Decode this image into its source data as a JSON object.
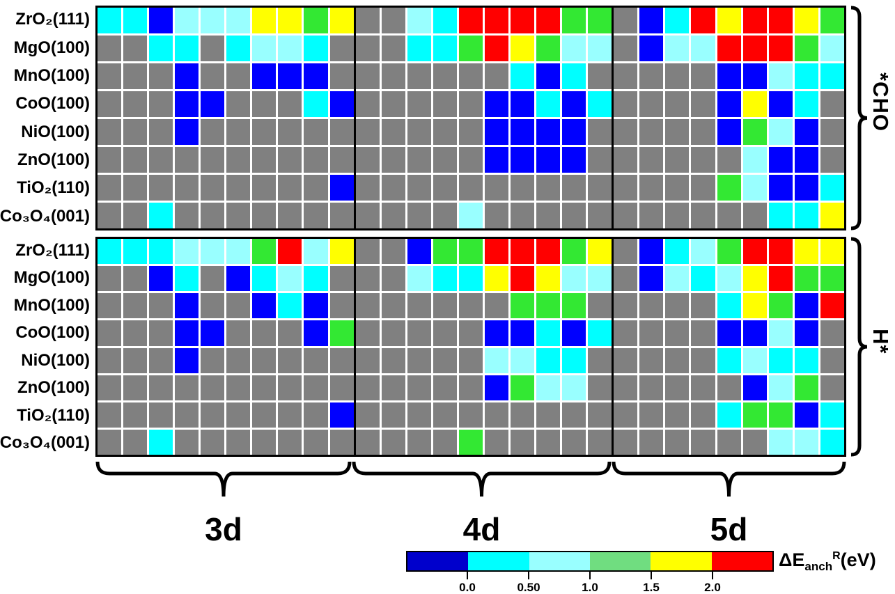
{
  "chart_data": {
    "type": "heatmap",
    "title": "",
    "surfaces": [
      "ZrO₂(111)",
      "MgO(100)",
      "MnO(100)",
      "CoO(100)",
      "NiO(100)",
      "ZnO(100)",
      "TiO₂(110)",
      "Co₃O₄(001)"
    ],
    "groups": [
      {
        "label": "3d",
        "cols": 10
      },
      {
        "label": "4d",
        "cols": 10
      },
      {
        "label": "5d",
        "cols": 9
      }
    ],
    "cell_colors": {
      "na": "#808080",
      "b": "#0000FF",
      "c": "#00FFFF",
      "lc": "#99FFFF",
      "g": "#33E833",
      "y": "#FFFF00",
      "r": "#FF0000"
    },
    "legend_bins": {
      "b": "< 0.0 eV",
      "c": "0.0 - 0.50 eV",
      "lc": "0.50 - 1.0 eV",
      "g": "1.0 - 1.5 eV",
      "y": "1.5 - 2.0 eV",
      "r": "> 2.0 eV",
      "na": "no data (gray)"
    },
    "panels": [
      {
        "label": "*CHO",
        "cells": {
          "3d": [
            [
              "c",
              "c",
              "b",
              "lc",
              "lc",
              "lc",
              "y",
              "y",
              "g",
              "y"
            ],
            [
              "na",
              "na",
              "c",
              "c",
              "na",
              "c",
              "lc",
              "lc",
              "c",
              "na"
            ],
            [
              "na",
              "na",
              "na",
              "b",
              "na",
              "na",
              "b",
              "b",
              "b",
              "na"
            ],
            [
              "na",
              "na",
              "na",
              "b",
              "b",
              "na",
              "na",
              "na",
              "c",
              "b"
            ],
            [
              "na",
              "na",
              "na",
              "b",
              "na",
              "na",
              "na",
              "na",
              "na",
              "na"
            ],
            [
              "na",
              "na",
              "na",
              "na",
              "na",
              "na",
              "na",
              "na",
              "na",
              "na"
            ],
            [
              "na",
              "na",
              "na",
              "na",
              "na",
              "na",
              "na",
              "na",
              "na",
              "b"
            ],
            [
              "na",
              "na",
              "c",
              "na",
              "na",
              "na",
              "na",
              "na",
              "na",
              "na"
            ]
          ],
          "4d": [
            [
              "na",
              "na",
              "lc",
              "c",
              "r",
              "r",
              "r",
              "r",
              "g",
              "g"
            ],
            [
              "na",
              "na",
              "c",
              "c",
              "g",
              "r",
              "y",
              "g",
              "lc",
              "lc"
            ],
            [
              "na",
              "na",
              "na",
              "na",
              "na",
              "na",
              "c",
              "b",
              "c",
              "na"
            ],
            [
              "na",
              "na",
              "na",
              "na",
              "na",
              "b",
              "b",
              "c",
              "b",
              "c"
            ],
            [
              "na",
              "na",
              "na",
              "na",
              "na",
              "b",
              "b",
              "b",
              "b",
              "na"
            ],
            [
              "na",
              "na",
              "na",
              "na",
              "na",
              "b",
              "b",
              "b",
              "b",
              "na"
            ],
            [
              "na",
              "na",
              "na",
              "na",
              "na",
              "na",
              "na",
              "na",
              "na",
              "na"
            ],
            [
              "na",
              "na",
              "na",
              "na",
              "lc",
              "na",
              "na",
              "na",
              "na",
              "na"
            ]
          ],
          "5d": [
            [
              "na",
              "b",
              "c",
              "r",
              "y",
              "r",
              "r",
              "y",
              "g"
            ],
            [
              "na",
              "b",
              "lc",
              "lc",
              "r",
              "r",
              "r",
              "g",
              "lc"
            ],
            [
              "na",
              "na",
              "na",
              "na",
              "b",
              "b",
              "lc",
              "c",
              "c"
            ],
            [
              "na",
              "na",
              "na",
              "na",
              "b",
              "y",
              "b",
              "c",
              "na"
            ],
            [
              "na",
              "na",
              "na",
              "na",
              "b",
              "g",
              "lc",
              "b",
              "na"
            ],
            [
              "na",
              "na",
              "na",
              "na",
              "na",
              "lc",
              "b",
              "b",
              "na"
            ],
            [
              "na",
              "na",
              "na",
              "na",
              "g",
              "lc",
              "b",
              "b",
              "c"
            ],
            [
              "na",
              "na",
              "na",
              "na",
              "na",
              "na",
              "c",
              "c",
              "y"
            ]
          ]
        }
      },
      {
        "label": "H*",
        "cells": {
          "3d": [
            [
              "c",
              "c",
              "c",
              "lc",
              "lc",
              "lc",
              "g",
              "r",
              "lc",
              "y"
            ],
            [
              "na",
              "na",
              "b",
              "c",
              "na",
              "b",
              "c",
              "lc",
              "c",
              "na"
            ],
            [
              "na",
              "na",
              "na",
              "b",
              "na",
              "na",
              "b",
              "c",
              "b",
              "na"
            ],
            [
              "na",
              "na",
              "na",
              "b",
              "b",
              "na",
              "na",
              "na",
              "b",
              "g"
            ],
            [
              "na",
              "na",
              "na",
              "b",
              "na",
              "na",
              "na",
              "na",
              "na",
              "na"
            ],
            [
              "na",
              "na",
              "na",
              "na",
              "na",
              "na",
              "na",
              "na",
              "na",
              "na"
            ],
            [
              "na",
              "na",
              "na",
              "na",
              "na",
              "na",
              "na",
              "na",
              "na",
              "b"
            ],
            [
              "na",
              "na",
              "c",
              "na",
              "na",
              "na",
              "na",
              "na",
              "na",
              "na"
            ]
          ],
          "4d": [
            [
              "na",
              "na",
              "b",
              "g",
              "g",
              "r",
              "r",
              "r",
              "g",
              "y"
            ],
            [
              "na",
              "na",
              "lc",
              "c",
              "c",
              "y",
              "r",
              "y",
              "lc",
              "lc"
            ],
            [
              "na",
              "na",
              "na",
              "na",
              "na",
              "na",
              "g",
              "g",
              "g",
              "na"
            ],
            [
              "na",
              "na",
              "na",
              "na",
              "na",
              "b",
              "b",
              "c",
              "b",
              "c"
            ],
            [
              "na",
              "na",
              "na",
              "na",
              "na",
              "lc",
              "lc",
              "c",
              "c",
              "na"
            ],
            [
              "na",
              "na",
              "na",
              "na",
              "na",
              "b",
              "g",
              "lc",
              "lc",
              "na"
            ],
            [
              "na",
              "na",
              "na",
              "na",
              "na",
              "na",
              "na",
              "na",
              "na",
              "na"
            ],
            [
              "na",
              "na",
              "na",
              "na",
              "g",
              "na",
              "na",
              "na",
              "na",
              "na"
            ]
          ],
          "5d": [
            [
              "na",
              "b",
              "c",
              "lc",
              "g",
              "r",
              "r",
              "y",
              "y"
            ],
            [
              "na",
              "b",
              "lc",
              "c",
              "lc",
              "y",
              "r",
              "g",
              "g"
            ],
            [
              "na",
              "na",
              "na",
              "na",
              "c",
              "y",
              "g",
              "b",
              "r"
            ],
            [
              "na",
              "na",
              "na",
              "na",
              "b",
              "b",
              "lc",
              "b",
              "na"
            ],
            [
              "na",
              "na",
              "na",
              "na",
              "c",
              "lc",
              "c",
              "c",
              "na"
            ],
            [
              "na",
              "na",
              "na",
              "na",
              "na",
              "b",
              "lc",
              "g",
              "na"
            ],
            [
              "na",
              "na",
              "na",
              "na",
              "c",
              "g",
              "g",
              "b",
              "c"
            ],
            [
              "na",
              "na",
              "na",
              "na",
              "na",
              "na",
              "lc",
              "lc",
              "c"
            ]
          ]
        }
      }
    ],
    "colorbar": {
      "segments": [
        "#0000CC",
        "#00FFFF",
        "#99FFFF",
        "#70DD80",
        "#FFFF00",
        "#FF0000"
      ],
      "ticks": [
        "0.0",
        "0.50",
        "1.0",
        "1.5",
        "2.0"
      ],
      "label_parts": {
        "prefix": "ΔE",
        "sub": "anch",
        "sup": "R",
        "suffix": "(eV)"
      }
    },
    "layout": {
      "grid": "white gaps between cells",
      "block_separator": "black",
      "legend_position": "bottom-right"
    }
  }
}
